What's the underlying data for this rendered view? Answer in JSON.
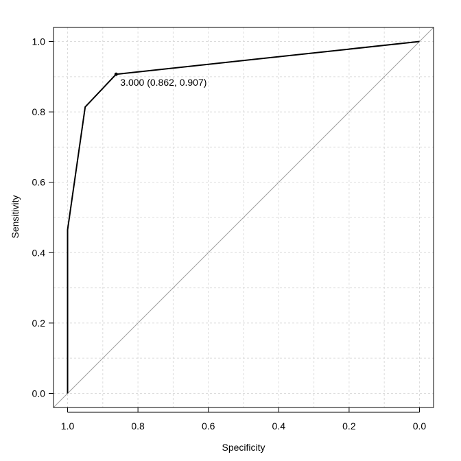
{
  "chart_data": {
    "type": "line",
    "title": "",
    "xlabel": "Specificity",
    "ylabel": "Sensitivity",
    "x_reversed": true,
    "xlim": [
      1.04,
      -0.04
    ],
    "ylim": [
      -0.04,
      1.04
    ],
    "xticks": [
      1.0,
      0.8,
      0.6,
      0.4,
      0.2,
      0.0
    ],
    "yticks": [
      0.0,
      0.2,
      0.4,
      0.6,
      0.8,
      1.0
    ],
    "xtick_labels": [
      "1.0",
      "0.8",
      "0.6",
      "0.4",
      "0.2",
      "0.0"
    ],
    "ytick_labels": [
      "0.0",
      "0.2",
      "0.4",
      "0.6",
      "0.8",
      "1.0"
    ],
    "grid": true,
    "series": [
      {
        "color": "#000000",
        "points": [
          {
            "x": 1.0,
            "y": 0.0
          },
          {
            "x": 1.0,
            "y": 0.465
          },
          {
            "x": 0.95,
            "y": 0.814
          },
          {
            "x": 0.862,
            "y": 0.907
          },
          {
            "x": 0.0,
            "y": 1.0
          }
        ]
      }
    ],
    "reference_line": {
      "color": "#a0a0a0",
      "from": {
        "x": 1.0,
        "y": 0.0
      },
      "to": {
        "x": 0.0,
        "y": 1.0
      }
    },
    "highlight_point": {
      "x": 0.862,
      "y": 0.907,
      "label": "3.000 (0.862, 0.907)"
    }
  }
}
